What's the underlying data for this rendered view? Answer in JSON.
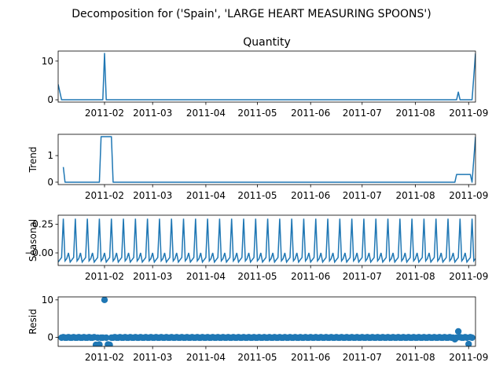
{
  "figure": {
    "suptitle": "Decomposition for ('Spain', 'LARGE HEART MEASURING SPOONS')"
  },
  "colors": {
    "line": "#1f77b4",
    "axis": "#000000",
    "background": "#ffffff"
  },
  "chart_data": [
    {
      "type": "line",
      "panel": "observed",
      "title": "Quantity",
      "ylabel": "",
      "xlim": [
        "2011-01-05",
        "2011-09-05"
      ],
      "ylim": [
        -0.6,
        12.6
      ],
      "yticks": [
        0,
        10
      ],
      "xticks": [
        "2011-02",
        "2011-03",
        "2011-04",
        "2011-05",
        "2011-06",
        "2011-07",
        "2011-08",
        "2011-09"
      ],
      "points": [
        [
          "2011-01-05",
          4
        ],
        [
          "2011-01-07",
          0
        ],
        [
          "2011-01-31",
          0
        ],
        [
          "2011-02-01",
          12
        ],
        [
          "2011-02-02",
          0
        ],
        [
          "2011-08-25",
          0
        ],
        [
          "2011-08-26",
          2
        ],
        [
          "2011-08-27",
          0
        ],
        [
          "2011-09-03",
          0
        ],
        [
          "2011-09-05",
          12
        ]
      ]
    },
    {
      "type": "line",
      "panel": "trend",
      "title": "",
      "ylabel": "Trend",
      "xlim": [
        "2011-01-05",
        "2011-09-05"
      ],
      "ylim": [
        -0.09,
        1.8
      ],
      "yticks": [
        0,
        1
      ],
      "xticks": [
        "2011-02",
        "2011-03",
        "2011-04",
        "2011-05",
        "2011-06",
        "2011-07",
        "2011-08",
        "2011-09"
      ],
      "points": [
        [
          "2011-01-08",
          0.57
        ],
        [
          "2011-01-09",
          0
        ],
        [
          "2011-01-29",
          0
        ],
        [
          "2011-01-30",
          1.71
        ],
        [
          "2011-02-05",
          1.71
        ],
        [
          "2011-02-06",
          0
        ],
        [
          "2011-08-24",
          0
        ],
        [
          "2011-08-25",
          0.29
        ],
        [
          "2011-09-02",
          0.29
        ],
        [
          "2011-09-03",
          0
        ],
        [
          "2011-09-05",
          1.71
        ]
      ]
    },
    {
      "type": "line",
      "panel": "seasonal",
      "title": "",
      "ylabel": "Seasonal",
      "xlim": [
        "2011-01-05",
        "2011-09-05"
      ],
      "ylim": [
        -0.11,
        0.33
      ],
      "yticks": [
        -0.0,
        0.25
      ],
      "ytick_labels": [
        "−0.00",
        "0.25"
      ],
      "xticks": [
        "2011-02",
        "2011-03",
        "2011-04",
        "2011-05",
        "2011-06",
        "2011-07",
        "2011-08",
        "2011-09"
      ],
      "period_days": 7,
      "pattern": [
        -0.08,
        -0.06,
        -0.04,
        0.3,
        -0.07,
        -0.05,
        0.0
      ]
    },
    {
      "type": "scatter",
      "panel": "resid",
      "title": "",
      "ylabel": "Resid",
      "xlim": [
        "2011-01-05",
        "2011-09-05"
      ],
      "ylim": [
        -2.4,
        10.8
      ],
      "yticks": [
        0,
        10
      ],
      "xticks": [
        "2011-02",
        "2011-03",
        "2011-04",
        "2011-05",
        "2011-06",
        "2011-07",
        "2011-08",
        "2011-09"
      ],
      "baseline": 0,
      "points": [
        [
          "2011-01-27",
          -2
        ],
        [
          "2011-01-29",
          -1.9
        ],
        [
          "2011-02-01",
          10
        ],
        [
          "2011-02-03",
          -1.9
        ],
        [
          "2011-02-04",
          -2
        ],
        [
          "2011-08-24",
          -0.5
        ],
        [
          "2011-08-26",
          1.6
        ],
        [
          "2011-09-01",
          -1.8
        ]
      ]
    }
  ]
}
